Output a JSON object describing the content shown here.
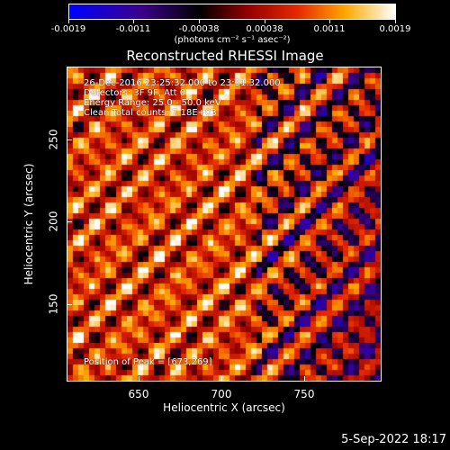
{
  "colorbar": {
    "labels": [
      "-0.0019",
      "-0.0011",
      "-0.00038",
      "0.00038",
      "0.0011",
      "0.0019"
    ],
    "units": "(photons cm⁻² s⁻¹ asec⁻²)"
  },
  "title": "Reconstructed RHESSI Image",
  "annotations": {
    "time": "26-Dec-2016 23:25:32.000 to 23:31:32.000",
    "detectors": "Detectors: 3F 9F, Att 0",
    "energy": "Energy Range: 25.0 - 50.0 keV",
    "clean": "Clean    Total counts: 7.18E+03",
    "peak": "Position of Peak = [673,269]"
  },
  "axes": {
    "xlabel": "Heliocentric X (arcsec)",
    "ylabel": "Heliocentric Y (arcsec)",
    "xticks": [
      "650",
      "700",
      "750"
    ],
    "yticks": [
      "250",
      "200",
      "150"
    ]
  },
  "footer": {
    "date": "5-Sep-2022 18:17"
  }
}
